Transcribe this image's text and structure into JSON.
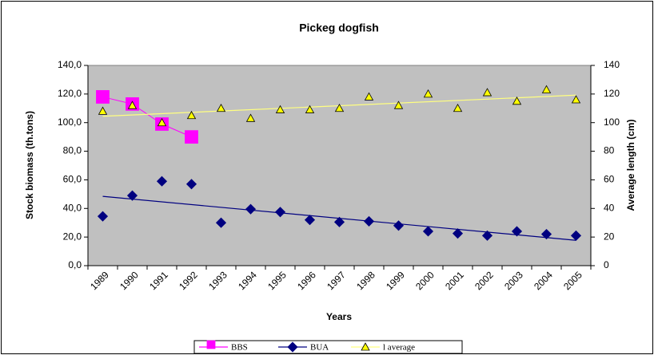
{
  "chart_data": {
    "type": "line",
    "title": "Pickeg dogfish",
    "x_label": "Years",
    "y_label": "Stock biomass (th.tons)",
    "y2_label": "Average length (cm)",
    "categories": [
      "1989",
      "1990",
      "1991",
      "1992",
      "1993",
      "1994",
      "1995",
      "1996",
      "1997",
      "1998",
      "1999",
      "2000",
      "2001",
      "2002",
      "2003",
      "2004",
      "2005"
    ],
    "ylim": [
      0,
      140
    ],
    "yticks": [
      {
        "value": 0,
        "label": "0,0"
      },
      {
        "value": 20,
        "label": "20,0"
      },
      {
        "value": 40,
        "label": "40,0"
      },
      {
        "value": 60,
        "label": "60,0"
      },
      {
        "value": 80,
        "label": "80,0"
      },
      {
        "value": 100,
        "label": "100,0"
      },
      {
        "value": 120,
        "label": "120,0"
      },
      {
        "value": 140,
        "label": "140,0"
      }
    ],
    "y2lim": [
      0,
      140
    ],
    "y2ticks": [
      0,
      20,
      40,
      60,
      80,
      100,
      120,
      140
    ],
    "grid": false,
    "plot_background": "#c0c0c0",
    "legend": "bottom",
    "series": [
      {
        "name": "BBS",
        "color": "#ff00ff",
        "marker": "square",
        "show_line": true,
        "trendline": false,
        "values": [
          118,
          113,
          99,
          90,
          null,
          null,
          null,
          null,
          null,
          null,
          null,
          null,
          null,
          null,
          null,
          null,
          null
        ]
      },
      {
        "name": "BUA",
        "color": "#000080",
        "marker": "diamond",
        "show_line": false,
        "trendline": true,
        "trendline_color": "#000080",
        "values": [
          34.5,
          49,
          59,
          57,
          30,
          39.5,
          37.5,
          32,
          30.5,
          31,
          28,
          24,
          22.5,
          21,
          24,
          22,
          21
        ]
      },
      {
        "name": "l average",
        "color": "#ffff00",
        "marker": "triangle",
        "show_line": false,
        "trendline": true,
        "trendline_color": "#ffff80",
        "axis": "y2",
        "values": [
          108,
          112,
          100,
          105,
          110,
          103,
          109,
          109,
          110,
          118,
          112,
          120,
          110,
          121,
          115,
          123,
          116
        ]
      }
    ]
  }
}
